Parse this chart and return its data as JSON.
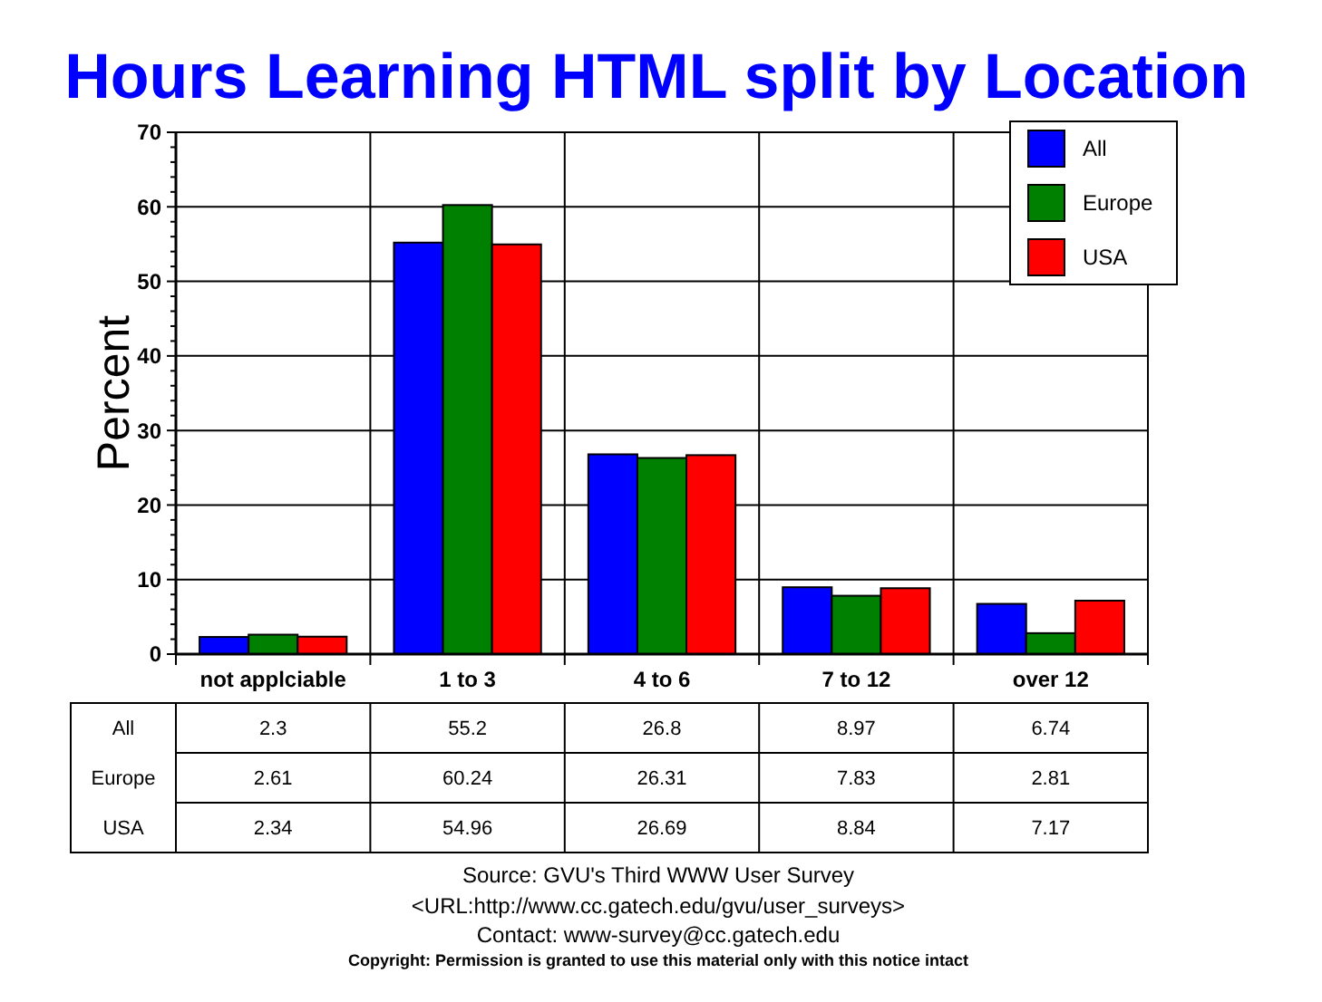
{
  "chart_data": {
    "type": "bar",
    "title": "Hours Learning HTML split by Location",
    "ylabel": "Percent",
    "categories": [
      "not applciable",
      "1 to 3",
      "4 to 6",
      "7 to 12",
      "over 12"
    ],
    "series": [
      {
        "name": "All",
        "color": "#0000ff",
        "values": [
          2.3,
          55.2,
          26.8,
          8.97,
          6.74
        ]
      },
      {
        "name": "Europe",
        "color": "#008000",
        "values": [
          2.61,
          60.24,
          26.31,
          7.83,
          2.81
        ]
      },
      {
        "name": "USA",
        "color": "#ff0000",
        "values": [
          2.34,
          54.96,
          26.69,
          8.84,
          7.17
        ]
      }
    ],
    "ylim": [
      0,
      70
    ],
    "yticks": [
      0,
      {
        "value": 2,
        "label": null
      },
      {
        "value": 4,
        "label": null
      },
      {
        "value": 6,
        "label": null
      },
      {
        "value": 8,
        "label": null
      },
      10,
      {
        "value": 12,
        "label": null
      },
      {
        "value": 14,
        "label": null
      },
      {
        "value": 16,
        "label": null
      },
      {
        "value": 18,
        "label": null
      },
      20,
      {
        "value": 22,
        "label": null
      },
      {
        "value": 24,
        "label": null
      },
      {
        "value": 26,
        "label": null
      },
      {
        "value": 28,
        "label": null
      },
      30,
      {
        "value": 32,
        "label": null
      },
      {
        "value": 34,
        "label": null
      },
      {
        "value": 36,
        "label": null
      },
      {
        "value": 38,
        "label": null
      },
      40,
      {
        "value": 42,
        "label": null
      },
      {
        "value": 44,
        "label": null
      },
      {
        "value": 46,
        "label": null
      },
      {
        "value": 48,
        "label": null
      },
      50,
      {
        "value": 52,
        "label": null
      },
      {
        "value": 54,
        "label": null
      },
      {
        "value": 56,
        "label": null
      },
      {
        "value": 58,
        "label": null
      },
      60,
      {
        "value": 62,
        "label": null
      },
      {
        "value": 64,
        "label": null
      },
      {
        "value": 66,
        "label": null
      },
      {
        "value": 68,
        "label": null
      },
      70
    ],
    "grid": true,
    "legend": "top right",
    "data_labels": true,
    "annotations": [
      "Source: GVU's Third WWW User Survey",
      "<URL:http://www.cc.gatech.edu/gvu/user_surveys>",
      "Contact: www-survey@cc.gatech.edu",
      "Copyright: Permission is granted to use this material only with this notice intact"
    ]
  }
}
